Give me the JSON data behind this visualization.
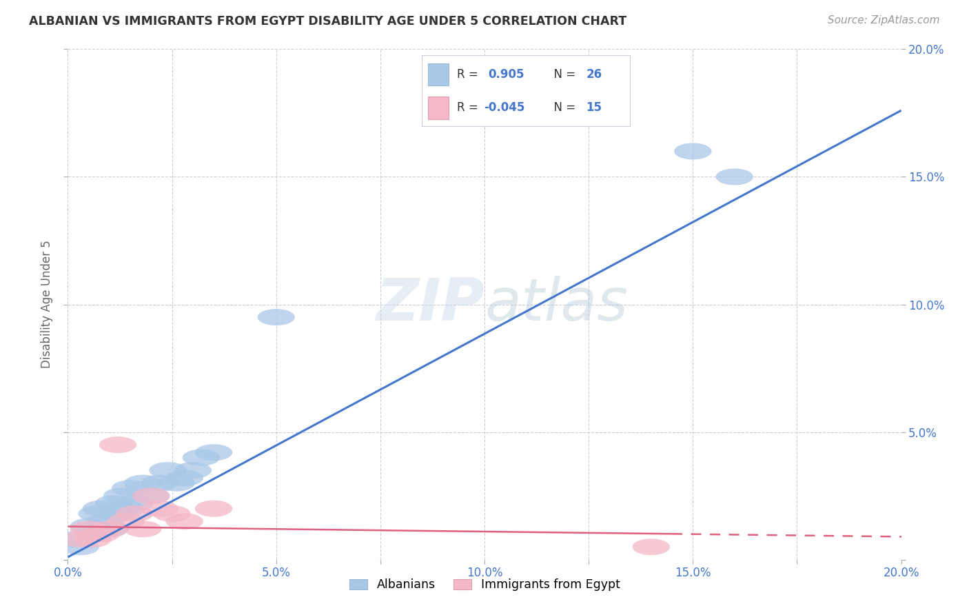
{
  "title": "ALBANIAN VS IMMIGRANTS FROM EGYPT DISABILITY AGE UNDER 5 CORRELATION CHART",
  "source": "Source: ZipAtlas.com",
  "ylabel": "Disability Age Under 5",
  "xlim": [
    0.0,
    0.2
  ],
  "ylim": [
    0.0,
    0.2
  ],
  "xtick_labels": [
    "0.0%",
    "",
    "5.0%",
    "",
    "10.0%",
    "",
    "15.0%",
    "",
    "20.0%"
  ],
  "xtick_vals": [
    0.0,
    0.025,
    0.05,
    0.075,
    0.1,
    0.125,
    0.15,
    0.175,
    0.2
  ],
  "ytick_labels": [
    "",
    "5.0%",
    "10.0%",
    "15.0%",
    "20.0%"
  ],
  "ytick_vals": [
    0.0,
    0.05,
    0.1,
    0.15,
    0.2
  ],
  "albanians_x": [
    0.002,
    0.003,
    0.005,
    0.006,
    0.007,
    0.008,
    0.009,
    0.01,
    0.011,
    0.012,
    0.013,
    0.014,
    0.015,
    0.016,
    0.018,
    0.02,
    0.022,
    0.024,
    0.026,
    0.028,
    0.03,
    0.032,
    0.035,
    0.05,
    0.15,
    0.16
  ],
  "albanians_y": [
    0.008,
    0.005,
    0.013,
    0.01,
    0.018,
    0.02,
    0.015,
    0.012,
    0.022,
    0.018,
    0.025,
    0.02,
    0.028,
    0.022,
    0.03,
    0.025,
    0.03,
    0.035,
    0.03,
    0.032,
    0.035,
    0.04,
    0.042,
    0.095,
    0.16,
    0.15
  ],
  "egypt_x": [
    0.003,
    0.005,
    0.006,
    0.008,
    0.01,
    0.012,
    0.014,
    0.016,
    0.018,
    0.02,
    0.022,
    0.025,
    0.028,
    0.035,
    0.14
  ],
  "egypt_y": [
    0.008,
    0.012,
    0.008,
    0.01,
    0.012,
    0.045,
    0.015,
    0.018,
    0.012,
    0.025,
    0.02,
    0.018,
    0.015,
    0.02,
    0.005
  ],
  "albanian_color": "#a8c8e8",
  "egypt_color": "#f4b8c8",
  "albanian_line_color": "#4477cc",
  "egypt_line_color": "#e06080",
  "watermark_zip": "ZIP",
  "watermark_atlas": "atlas",
  "background_color": "#ffffff",
  "grid_color": "#ccccdd",
  "tick_color": "#4477cc",
  "title_color": "#333333",
  "source_color": "#999999"
}
